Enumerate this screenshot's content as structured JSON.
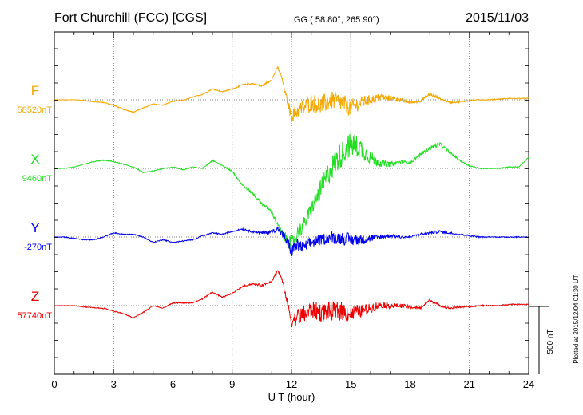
{
  "header": {
    "station": "Fort Churchill (FCC)  [CGS]",
    "coords": "GG ( 58.80°, 265.90°)",
    "date": "2015/11/03"
  },
  "footer": {
    "plotted": "Plotted at 2015/12/04 01:30 UT"
  },
  "chart_data": {
    "type": "line",
    "xlabel": "U T (hour)",
    "xlim": [
      0,
      24
    ],
    "xticks": [
      "0",
      "3",
      "6",
      "9",
      "12",
      "15",
      "18",
      "21",
      "24"
    ],
    "scale_bar": "500 nT",
    "grid": true,
    "series": [
      {
        "name": "F",
        "baseline": "58520nT",
        "color": "#f5a800",
        "x": [
          0,
          0.5,
          1,
          1.5,
          2,
          2.5,
          3,
          3.5,
          4,
          4.5,
          5,
          5.5,
          6,
          6.5,
          7,
          7.5,
          8,
          8.5,
          9,
          9.5,
          10,
          10.5,
          11,
          11.3,
          11.5,
          11.7,
          12,
          12.3,
          12.6,
          13,
          13.5,
          14,
          14.5,
          15,
          15.5,
          16,
          16.5,
          17,
          17.5,
          18,
          18.5,
          19,
          19.5,
          20,
          20.5,
          21,
          21.5,
          22,
          22.5,
          23,
          23.5,
          24
        ],
        "y": [
          0,
          0,
          0,
          -5,
          -15,
          -20,
          -40,
          -70,
          -90,
          -60,
          -30,
          -40,
          -10,
          -5,
          20,
          40,
          80,
          60,
          80,
          110,
          120,
          100,
          150,
          240,
          170,
          40,
          -120,
          -80,
          -60,
          -20,
          -40,
          0,
          -20,
          -60,
          -20,
          0,
          20,
          10,
          0,
          -20,
          -10,
          40,
          10,
          -20,
          -15,
          -5,
          0,
          0,
          5,
          10,
          10,
          10
        ],
        "noise": [
          0,
          0,
          0,
          2,
          2,
          3,
          3,
          3,
          3,
          3,
          3,
          3,
          3,
          3,
          3,
          3,
          4,
          4,
          4,
          5,
          6,
          8,
          8,
          10,
          12,
          20,
          45,
          60,
          65,
          65,
          70,
          70,
          70,
          65,
          45,
          35,
          28,
          20,
          15,
          12,
          10,
          10,
          8,
          6,
          6,
          5,
          4,
          3,
          3,
          3,
          3,
          3
        ]
      },
      {
        "name": "X",
        "baseline": "9460nT",
        "color": "#22dd22",
        "x": [
          0,
          0.5,
          1,
          1.5,
          2,
          2.5,
          3,
          3.5,
          4,
          4.5,
          5,
          5.5,
          6,
          6.5,
          7,
          7.5,
          8,
          8.5,
          9,
          9.5,
          10,
          10.5,
          11,
          11.3,
          11.6,
          12,
          12.3,
          12.6,
          13,
          13.5,
          14,
          14.5,
          15,
          15.5,
          16,
          16.5,
          17,
          17.5,
          18,
          18.5,
          19,
          19.5,
          20,
          20.5,
          21,
          21.5,
          22,
          22.5,
          23,
          23.5,
          24
        ],
        "y": [
          0,
          0,
          10,
          30,
          50,
          60,
          50,
          30,
          10,
          -30,
          -20,
          0,
          10,
          -10,
          10,
          0,
          60,
          20,
          -20,
          -120,
          -180,
          -260,
          -320,
          -420,
          -500,
          -560,
          -480,
          -420,
          -300,
          -150,
          0,
          100,
          180,
          150,
          80,
          40,
          30,
          50,
          40,
          100,
          150,
          180,
          120,
          60,
          20,
          0,
          0,
          0,
          10,
          10,
          80
        ],
        "noise": [
          0,
          0,
          2,
          2,
          3,
          3,
          3,
          3,
          3,
          3,
          3,
          3,
          3,
          3,
          3,
          3,
          4,
          4,
          6,
          8,
          10,
          12,
          14,
          18,
          35,
          60,
          55,
          55,
          55,
          75,
          90,
          95,
          100,
          80,
          50,
          30,
          18,
          12,
          10,
          12,
          15,
          12,
          8,
          6,
          5,
          4,
          3,
          3,
          3,
          3,
          3
        ]
      },
      {
        "name": "Y",
        "baseline": "-270nT",
        "color": "#0000ee",
        "x": [
          0,
          0.5,
          1,
          1.5,
          2,
          2.5,
          3,
          3.5,
          4,
          4.5,
          5,
          5.5,
          6,
          6.5,
          7,
          7.5,
          8,
          8.5,
          9,
          9.5,
          10,
          10.5,
          11,
          11.3,
          11.6,
          12,
          12.3,
          12.6,
          13,
          13.5,
          14,
          14.5,
          15,
          15.5,
          16,
          16.5,
          17,
          17.5,
          18,
          18.5,
          19,
          19.5,
          20,
          20.5,
          21,
          21.5,
          22,
          22.5,
          23,
          23.5,
          24
        ],
        "y": [
          0,
          0,
          -10,
          -20,
          -20,
          0,
          30,
          20,
          20,
          0,
          -40,
          -20,
          -40,
          -30,
          -20,
          10,
          30,
          20,
          40,
          60,
          40,
          30,
          40,
          60,
          10,
          -100,
          -60,
          -80,
          -40,
          -20,
          0,
          -10,
          -20,
          -20,
          -10,
          0,
          10,
          0,
          0,
          20,
          30,
          40,
          30,
          20,
          10,
          0,
          0,
          0,
          0,
          0,
          0
        ],
        "noise": [
          0,
          2,
          2,
          2,
          3,
          3,
          3,
          3,
          3,
          3,
          3,
          3,
          3,
          3,
          3,
          3,
          4,
          4,
          5,
          6,
          8,
          10,
          14,
          18,
          30,
          50,
          50,
          45,
          40,
          40,
          45,
          45,
          50,
          40,
          28,
          20,
          14,
          10,
          8,
          8,
          10,
          10,
          8,
          6,
          5,
          4,
          3,
          3,
          3,
          3,
          3
        ]
      },
      {
        "name": "Z",
        "baseline": "57740nT",
        "color": "#ee0000",
        "x": [
          0,
          0.5,
          1,
          1.5,
          2,
          2.5,
          3,
          3.5,
          4,
          4.5,
          5,
          5.5,
          6,
          6.5,
          7,
          7.5,
          8,
          8.5,
          9,
          9.5,
          10,
          10.5,
          11,
          11.3,
          11.5,
          11.7,
          12,
          12.3,
          12.6,
          13,
          13.5,
          14,
          14.5,
          15,
          15.5,
          16,
          16.5,
          17,
          17.5,
          18,
          18.5,
          19,
          19.5,
          20,
          20.5,
          21,
          21.5,
          22,
          22.5,
          23,
          23.5,
          24
        ],
        "y": [
          0,
          0,
          0,
          -10,
          -15,
          -20,
          -40,
          -60,
          -90,
          -50,
          0,
          -20,
          20,
          20,
          20,
          50,
          100,
          60,
          90,
          140,
          160,
          150,
          180,
          260,
          200,
          80,
          -120,
          -80,
          -70,
          -30,
          -50,
          -40,
          -40,
          -60,
          -40,
          -20,
          10,
          0,
          0,
          -10,
          -20,
          40,
          0,
          -20,
          -10,
          -10,
          0,
          0,
          0,
          10,
          10,
          10
        ],
        "noise": [
          0,
          0,
          0,
          2,
          2,
          3,
          3,
          3,
          3,
          3,
          3,
          3,
          3,
          3,
          3,
          3,
          4,
          4,
          4,
          5,
          6,
          8,
          8,
          10,
          12,
          20,
          45,
          60,
          65,
          65,
          70,
          70,
          70,
          65,
          45,
          35,
          28,
          20,
          15,
          12,
          10,
          10,
          8,
          6,
          6,
          5,
          4,
          3,
          3,
          3,
          3,
          3
        ]
      }
    ]
  }
}
